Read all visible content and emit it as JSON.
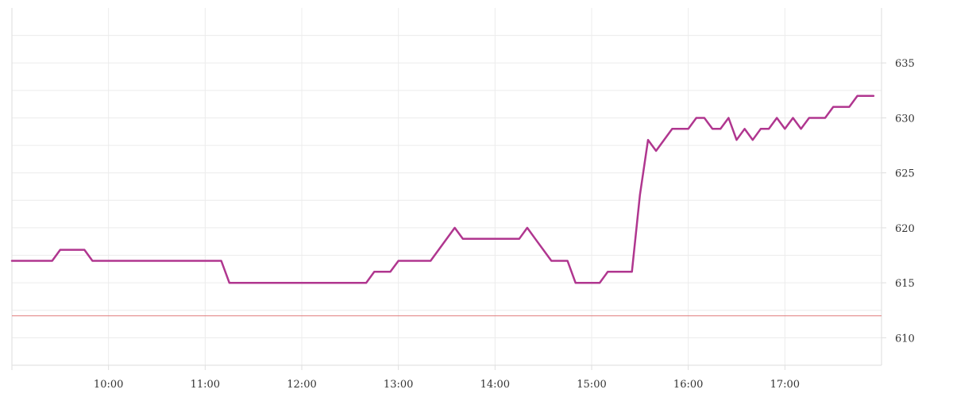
{
  "chart_data": {
    "type": "line",
    "title": "",
    "xlabel": "",
    "ylabel": "",
    "xlim": [
      "09:00",
      "18:00"
    ],
    "ylim": [
      607.5,
      640
    ],
    "x_ticks": [
      "10:00",
      "11:00",
      "12:00",
      "13:00",
      "14:00",
      "15:00",
      "16:00",
      "17:00"
    ],
    "y_ticks": [
      610,
      615,
      620,
      625,
      630,
      635
    ],
    "grid": true,
    "y_axis_position": "right",
    "reference_line": {
      "value": 612,
      "color": "#e07a7a"
    },
    "series": [
      {
        "color": "#b0368f",
        "points": [
          [
            "09:00",
            617
          ],
          [
            "09:25",
            617
          ],
          [
            "09:30",
            618
          ],
          [
            "09:45",
            618
          ],
          [
            "09:50",
            617
          ],
          [
            "11:10",
            617
          ],
          [
            "11:15",
            615
          ],
          [
            "12:40",
            615
          ],
          [
            "12:45",
            616
          ],
          [
            "12:55",
            616
          ],
          [
            "13:00",
            617
          ],
          [
            "13:20",
            617
          ],
          [
            "13:35",
            620
          ],
          [
            "13:40",
            619
          ],
          [
            "14:15",
            619
          ],
          [
            "14:20",
            620
          ],
          [
            "14:25",
            619
          ],
          [
            "14:35",
            617
          ],
          [
            "14:45",
            617
          ],
          [
            "14:50",
            615
          ],
          [
            "15:05",
            615
          ],
          [
            "15:10",
            616
          ],
          [
            "15:25",
            616
          ],
          [
            "15:30",
            623
          ],
          [
            "15:35",
            628
          ],
          [
            "15:40",
            627
          ],
          [
            "15:50",
            629
          ],
          [
            "16:00",
            629
          ],
          [
            "16:05",
            630
          ],
          [
            "16:10",
            630
          ],
          [
            "16:15",
            629
          ],
          [
            "16:20",
            629
          ],
          [
            "16:25",
            630
          ],
          [
            "16:30",
            628
          ],
          [
            "16:35",
            629
          ],
          [
            "16:40",
            628
          ],
          [
            "16:45",
            629
          ],
          [
            "16:50",
            629
          ],
          [
            "16:55",
            630
          ],
          [
            "17:00",
            629
          ],
          [
            "17:05",
            630
          ],
          [
            "17:10",
            629
          ],
          [
            "17:15",
            630
          ],
          [
            "17:25",
            630
          ],
          [
            "17:30",
            631
          ],
          [
            "17:40",
            631
          ],
          [
            "17:45",
            632
          ],
          [
            "17:55",
            632
          ]
        ]
      }
    ]
  }
}
